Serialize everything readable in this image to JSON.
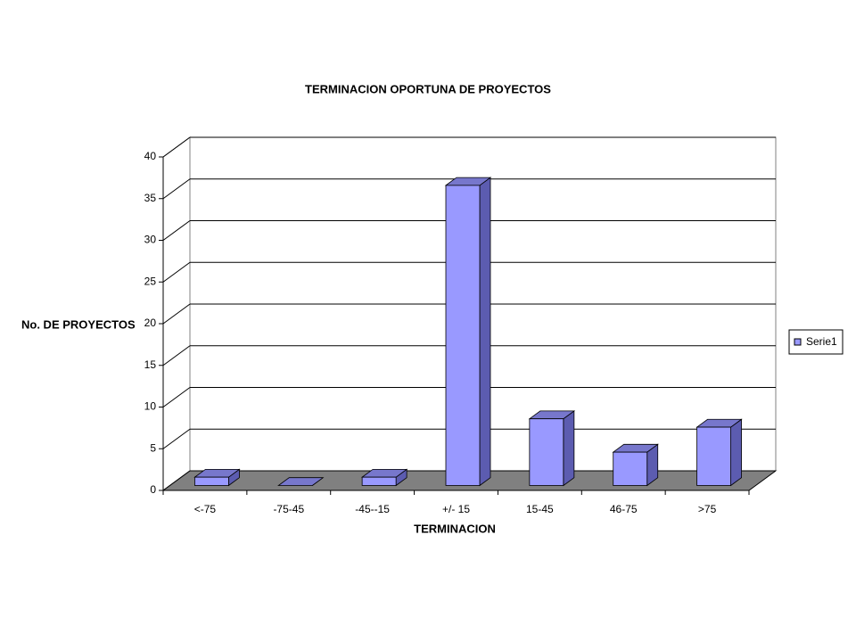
{
  "chart_data": {
    "type": "bar3d",
    "title": "TERMINACION OPORTUNA DE PROYECTOS",
    "x_label": "TERMINACION",
    "y_label": "No. DE PROYECTOS",
    "categories": [
      "<-75",
      "-75-45",
      "-45--15",
      "+/- 15",
      "15-45",
      "46-75",
      ">75"
    ],
    "series": [
      {
        "name": "Serie1",
        "color": "#9999ff",
        "values": [
          1,
          0,
          1,
          36,
          8,
          4,
          7
        ]
      }
    ],
    "ylim": [
      0,
      40
    ],
    "yticks": [
      0,
      5,
      10,
      15,
      20,
      25,
      30,
      35,
      40
    ],
    "grid": true,
    "legend": "right"
  }
}
